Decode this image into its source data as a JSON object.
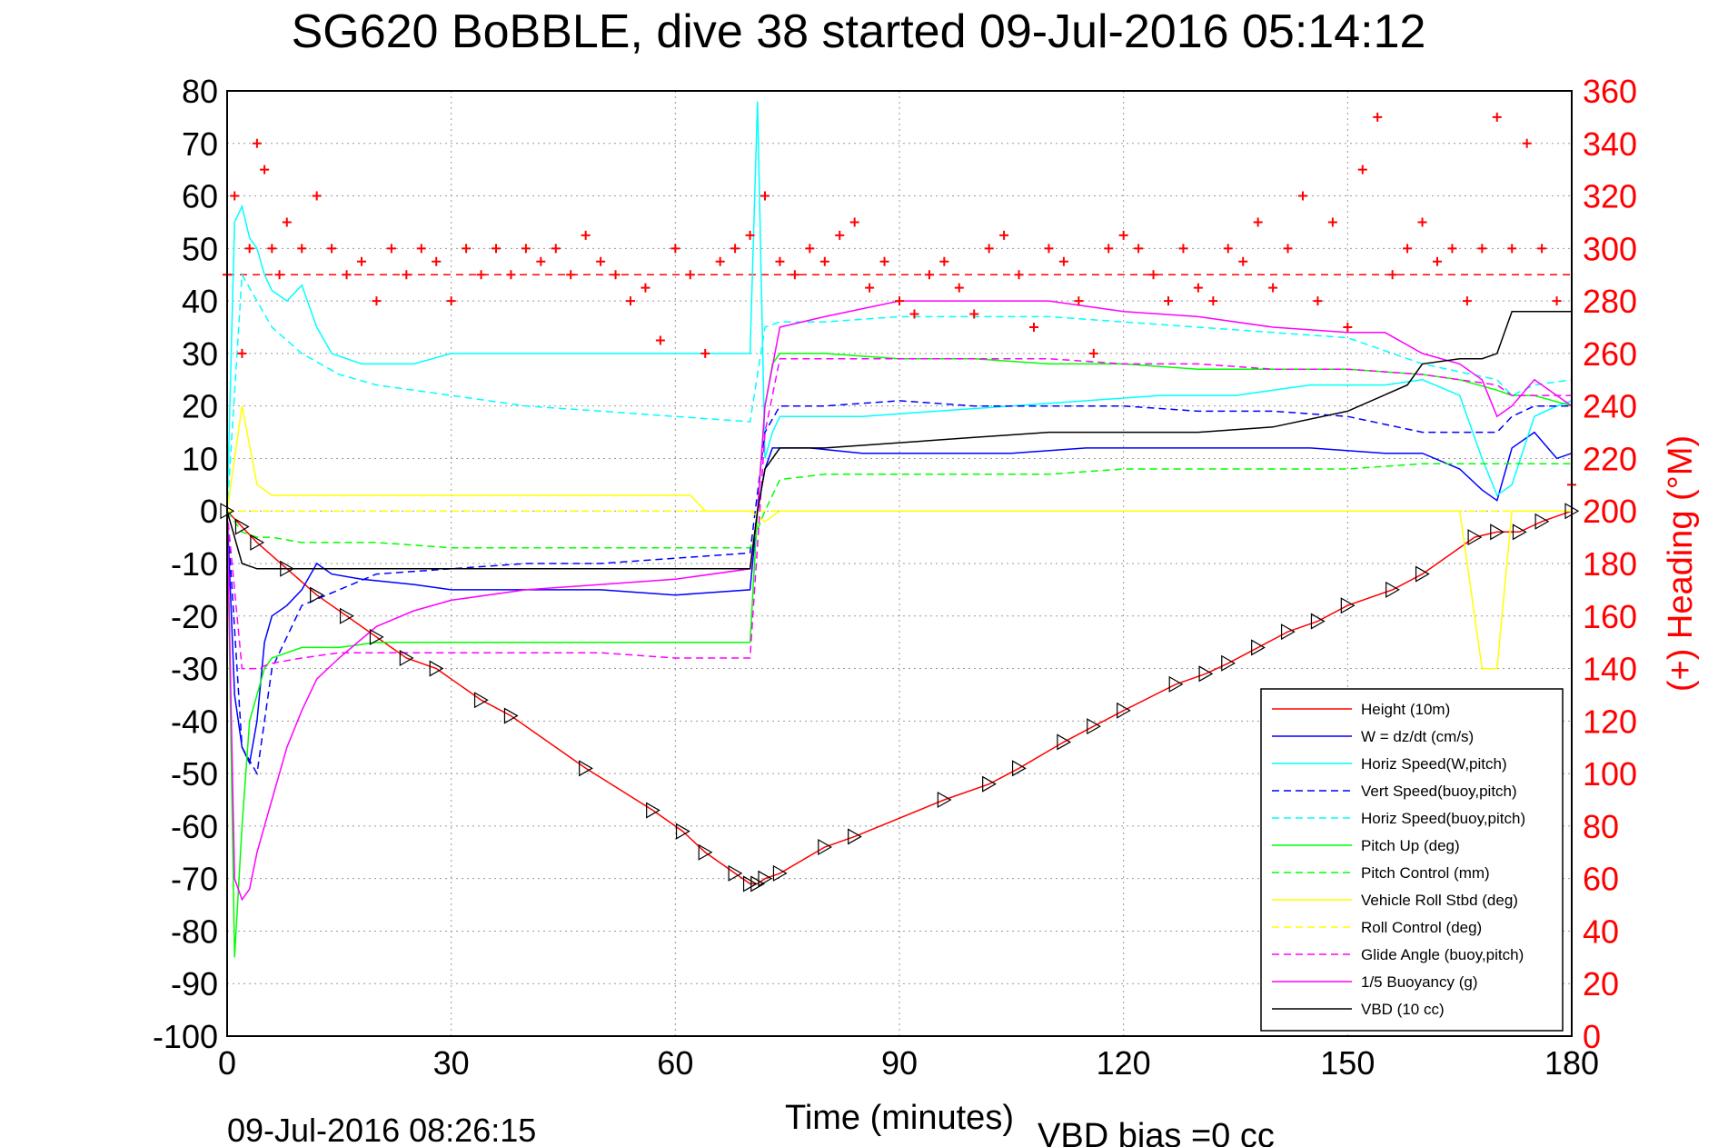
{
  "chart_data": {
    "type": "line",
    "title": "SG620 BoBBLE, dive 38 started 09-Jul-2016 05:14:12",
    "xlabel": "Time (minutes)",
    "ylabel_right": "(+) Heading (°M)",
    "footer_left": "09-Jul-2016 08:26:15",
    "footer_right": "VBD bias =0 cc",
    "xlim": [
      0,
      180
    ],
    "ylim": [
      -100,
      80
    ],
    "ylim_right": [
      0,
      360
    ],
    "x_ticks": [
      "0",
      "30",
      "60",
      "90",
      "120",
      "150",
      "180"
    ],
    "y_ticks": [
      "80",
      "70",
      "60",
      "50",
      "40",
      "30",
      "20",
      "10",
      "0",
      "-10",
      "-20",
      "-30",
      "-40",
      "-50",
      "-60",
      "-70",
      "-80",
      "-90",
      "-100"
    ],
    "y_ticks_right": [
      "360",
      "340",
      "320",
      "300",
      "280",
      "260",
      "240",
      "220",
      "200",
      "180",
      "160",
      "140",
      "120",
      "100",
      "80",
      "60",
      "40",
      "20",
      "0"
    ],
    "grid": true,
    "legend_position": "lower-right",
    "heading_reference": 290,
    "colors": {
      "height": "#ff0000",
      "w": "#0000ff",
      "horiz": "#00ffff",
      "pitch": "#00ff00",
      "roll": "#ffff00",
      "buoy": "#ff00ff",
      "vbd": "#000000",
      "heading": "#ff0000"
    },
    "series": [
      {
        "name": "Height (10m)",
        "color": "#ff0000",
        "dash": "solid",
        "axis": "left",
        "x": [
          0,
          2,
          4,
          8,
          12,
          16,
          20,
          24,
          28,
          34,
          38,
          48,
          57,
          61,
          64,
          68,
          70,
          71,
          72,
          74,
          80,
          84,
          96,
          102,
          106,
          112,
          116,
          120,
          127,
          131,
          134,
          138,
          142,
          146,
          150,
          156,
          160,
          167,
          170,
          173,
          176,
          180
        ],
        "y": [
          0,
          -3,
          -6,
          -11,
          -16,
          -20,
          -24,
          -28,
          -30,
          -36,
          -39,
          -49,
          -57,
          -61,
          -65,
          -69,
          -71,
          -71,
          -70,
          -69,
          -64,
          -62,
          -55,
          -52,
          -49,
          -44,
          -41,
          -38,
          -33,
          -31,
          -29,
          -26,
          -23,
          -21,
          -18,
          -15,
          -12,
          -5,
          -4,
          -4,
          -2,
          0
        ]
      },
      {
        "name": "W = dz/dt (cm/s)",
        "color": "#0000ff",
        "dash": "solid",
        "axis": "left",
        "x": [
          0,
          1,
          2,
          3,
          4,
          5,
          6,
          8,
          10,
          12,
          14,
          18,
          25,
          30,
          40,
          50,
          60,
          70,
          71,
          72,
          73,
          74,
          78,
          85,
          95,
          105,
          115,
          125,
          135,
          145,
          155,
          160,
          165,
          168,
          170,
          172,
          175,
          178,
          180
        ],
        "y": [
          0,
          -35,
          -45,
          -48,
          -40,
          -25,
          -20,
          -18,
          -15,
          -10,
          -12,
          -13,
          -14,
          -15,
          -15,
          -15,
          -16,
          -15,
          0,
          8,
          12,
          12,
          12,
          11,
          11,
          11,
          12,
          12,
          12,
          12,
          11,
          11,
          8,
          4,
          2,
          12,
          15,
          10,
          11
        ]
      },
      {
        "name": "Horiz Speed(W,pitch)",
        "color": "#00ffff",
        "dash": "solid",
        "axis": "left",
        "x": [
          0,
          1,
          2,
          3,
          4,
          5,
          6,
          8,
          10,
          12,
          14,
          18,
          25,
          30,
          40,
          50,
          60,
          70,
          71,
          72,
          73,
          74,
          78,
          85,
          95,
          105,
          115,
          125,
          135,
          145,
          155,
          160,
          165,
          168,
          170,
          172,
          175,
          178,
          180
        ],
        "y": [
          0,
          55,
          58,
          52,
          50,
          45,
          42,
          40,
          43,
          35,
          30,
          28,
          28,
          30,
          30,
          30,
          30,
          30,
          78,
          10,
          15,
          18,
          18,
          18,
          19,
          20,
          21,
          22,
          22,
          24,
          24,
          25,
          22,
          10,
          3,
          5,
          18,
          20,
          21
        ]
      },
      {
        "name": "Vert Speed(buoy,pitch)",
        "color": "#0000ff",
        "dash": "dashed",
        "axis": "left",
        "x": [
          0,
          2,
          4,
          6,
          10,
          20,
          30,
          40,
          50,
          60,
          70,
          72,
          74,
          80,
          90,
          100,
          110,
          120,
          130,
          140,
          150,
          160,
          170,
          172,
          175,
          180
        ],
        "y": [
          0,
          -45,
          -50,
          -30,
          -18,
          -12,
          -11,
          -10,
          -10,
          -9,
          -8,
          15,
          20,
          20,
          21,
          20,
          20,
          20,
          19,
          19,
          18,
          15,
          15,
          18,
          20,
          20
        ]
      },
      {
        "name": "Horiz Speed(buoy,pitch)",
        "color": "#00ffff",
        "dash": "dashed",
        "axis": "left",
        "x": [
          0,
          2,
          4,
          6,
          10,
          15,
          20,
          30,
          40,
          50,
          60,
          70,
          72,
          74,
          80,
          90,
          100,
          110,
          120,
          130,
          140,
          150,
          160,
          170,
          172,
          175,
          180
        ],
        "y": [
          0,
          45,
          40,
          35,
          30,
          26,
          24,
          22,
          20,
          19,
          18,
          17,
          35,
          36,
          36,
          37,
          37,
          37,
          36,
          35,
          34,
          33,
          28,
          25,
          22,
          24,
          25
        ]
      },
      {
        "name": "Pitch Up (deg)",
        "color": "#00ff00",
        "dash": "solid",
        "axis": "left",
        "x": [
          0,
          1,
          2,
          3,
          4,
          5,
          6,
          8,
          10,
          15,
          20,
          30,
          40,
          50,
          60,
          70,
          71,
          72,
          73,
          74,
          80,
          90,
          100,
          110,
          120,
          130,
          140,
          150,
          160,
          165,
          170,
          172,
          175,
          180
        ],
        "y": [
          0,
          -85,
          -60,
          -40,
          -35,
          -30,
          -28,
          -27,
          -26,
          -26,
          -25,
          -25,
          -25,
          -25,
          -25,
          -25,
          0,
          20,
          28,
          30,
          30,
          29,
          29,
          28,
          28,
          27,
          27,
          27,
          26,
          25,
          23,
          22,
          22,
          20
        ]
      },
      {
        "name": "Pitch Control (mm)",
        "color": "#00ff00",
        "dash": "dashed",
        "axis": "left",
        "x": [
          0,
          2,
          4,
          6,
          10,
          20,
          30,
          40,
          50,
          60,
          70,
          72,
          74,
          80,
          90,
          100,
          110,
          120,
          130,
          140,
          150,
          160,
          170,
          175,
          180
        ],
        "y": [
          0,
          -4,
          -5,
          -5,
          -6,
          -6,
          -7,
          -7,
          -7,
          -7,
          -7,
          0,
          6,
          7,
          7,
          7,
          7,
          8,
          8,
          8,
          8,
          9,
          9,
          9,
          9
        ]
      },
      {
        "name": "Vehicle Roll Stbd (deg)",
        "color": "#ffff00",
        "dash": "solid",
        "axis": "left",
        "x": [
          0,
          2,
          4,
          6,
          10,
          20,
          30,
          40,
          50,
          60,
          62,
          64,
          70,
          72,
          74,
          80,
          90,
          100,
          110,
          120,
          130,
          140,
          150,
          160,
          165,
          168,
          170,
          172,
          175,
          180
        ],
        "y": [
          0,
          20,
          5,
          3,
          3,
          3,
          3,
          3,
          3,
          3,
          3,
          0,
          0,
          -2,
          0,
          0,
          0,
          0,
          0,
          0,
          0,
          0,
          0,
          0,
          0,
          -30,
          -30,
          0,
          0,
          0
        ]
      },
      {
        "name": "Roll Control (deg)",
        "color": "#ffff00",
        "dash": "dashed",
        "axis": "left",
        "x": [
          0,
          2,
          4,
          6,
          10,
          20,
          30,
          40,
          50,
          60,
          70,
          72,
          74,
          80,
          90,
          100,
          110,
          120,
          130,
          140,
          150,
          160,
          170,
          175,
          180
        ],
        "y": [
          0,
          0,
          0,
          0,
          0,
          0,
          0,
          0,
          0,
          0,
          0,
          0,
          0,
          0,
          0,
          0,
          0,
          0,
          0,
          0,
          0,
          0,
          0,
          0,
          0
        ]
      },
      {
        "name": "Glide Angle (buoy,pitch)",
        "color": "#ff00ff",
        "dash": "dashed",
        "axis": "left",
        "x": [
          0,
          2,
          4,
          6,
          10,
          15,
          20,
          30,
          40,
          50,
          60,
          70,
          72,
          74,
          80,
          90,
          100,
          110,
          120,
          130,
          140,
          150,
          160,
          170,
          172,
          175,
          180
        ],
        "y": [
          0,
          -30,
          -30,
          -29,
          -28,
          -27,
          -27,
          -27,
          -27,
          -27,
          -28,
          -28,
          15,
          29,
          29,
          29,
          29,
          29,
          28,
          28,
          27,
          27,
          26,
          24,
          22,
          22,
          22
        ]
      },
      {
        "name": "1/5 Buoyancy (g)",
        "color": "#ff00ff",
        "dash": "solid",
        "axis": "left",
        "x": [
          0,
          1,
          2,
          3,
          4,
          6,
          8,
          10,
          12,
          15,
          20,
          25,
          30,
          40,
          50,
          60,
          70,
          71,
          72,
          74,
          80,
          90,
          100,
          110,
          120,
          130,
          140,
          150,
          155,
          160,
          165,
          168,
          170,
          172,
          175,
          180
        ],
        "y": [
          0,
          -70,
          -74,
          -72,
          -65,
          -55,
          -45,
          -38,
          -32,
          -28,
          -22,
          -19,
          -17,
          -15,
          -14,
          -13,
          -11,
          0,
          20,
          35,
          37,
          40,
          40,
          40,
          38,
          37,
          35,
          34,
          34,
          30,
          28,
          25,
          18,
          20,
          25,
          20
        ]
      },
      {
        "name": "VBD (10 cc)",
        "color": "#000000",
        "dash": "solid",
        "axis": "left",
        "x": [
          0,
          2,
          4,
          10,
          20,
          30,
          40,
          50,
          60,
          70,
          71,
          72,
          74,
          80,
          90,
          100,
          110,
          120,
          130,
          140,
          150,
          158,
          160,
          165,
          168,
          170,
          172,
          175,
          180
        ],
        "y": [
          0,
          -10,
          -11,
          -11,
          -11,
          -11,
          -11,
          -11,
          -11,
          -11,
          0,
          8,
          12,
          12,
          13,
          14,
          15,
          15,
          15,
          16,
          19,
          24,
          28,
          29,
          29,
          30,
          38,
          38,
          38
        ]
      },
      {
        "name": "Heading (+)",
        "color": "#ff0000",
        "marker": "+",
        "axis": "right",
        "x": [
          0,
          1,
          2,
          3,
          4,
          5,
          6,
          7,
          8,
          10,
          12,
          14,
          16,
          18,
          20,
          22,
          24,
          26,
          28,
          30,
          32,
          34,
          36,
          38,
          40,
          42,
          44,
          46,
          48,
          50,
          52,
          54,
          56,
          58,
          60,
          62,
          64,
          66,
          68,
          70,
          72,
          74,
          76,
          78,
          80,
          82,
          84,
          86,
          88,
          90,
          92,
          94,
          96,
          98,
          100,
          102,
          104,
          106,
          108,
          110,
          112,
          114,
          116,
          118,
          120,
          122,
          124,
          126,
          128,
          130,
          132,
          134,
          136,
          138,
          140,
          142,
          144,
          146,
          148,
          150,
          152,
          154,
          156,
          158,
          160,
          162,
          164,
          166,
          168,
          170,
          172,
          174,
          176,
          178,
          180
        ],
        "y": [
          290,
          320,
          260,
          300,
          340,
          330,
          300,
          290,
          310,
          300,
          320,
          300,
          290,
          295,
          280,
          300,
          290,
          300,
          295,
          280,
          300,
          290,
          300,
          290,
          300,
          295,
          300,
          290,
          305,
          295,
          290,
          280,
          285,
          265,
          300,
          290,
          260,
          295,
          300,
          305,
          320,
          295,
          290,
          300,
          295,
          305,
          310,
          285,
          295,
          280,
          275,
          290,
          295,
          285,
          275,
          300,
          305,
          290,
          270,
          300,
          295,
          280,
          260,
          300,
          305,
          300,
          290,
          280,
          300,
          285,
          280,
          300,
          295,
          310,
          285,
          300,
          320,
          280,
          310,
          270,
          330,
          350,
          290,
          300,
          310,
          295,
          300,
          280,
          300,
          350,
          300,
          340,
          300,
          280,
          210
        ]
      }
    ],
    "legend": [
      "Height (10m)",
      "W = dz/dt (cm/s)",
      "Horiz Speed(W,pitch)",
      "Vert Speed(buoy,pitch)",
      "Horiz Speed(buoy,pitch)",
      "Pitch Up (deg)",
      "Pitch Control (mm)",
      "Vehicle Roll Stbd (deg)",
      "Roll Control (deg)",
      "Glide Angle (buoy,pitch)",
      "1/5 Buoyancy (g)",
      "VBD (10 cc)"
    ]
  }
}
